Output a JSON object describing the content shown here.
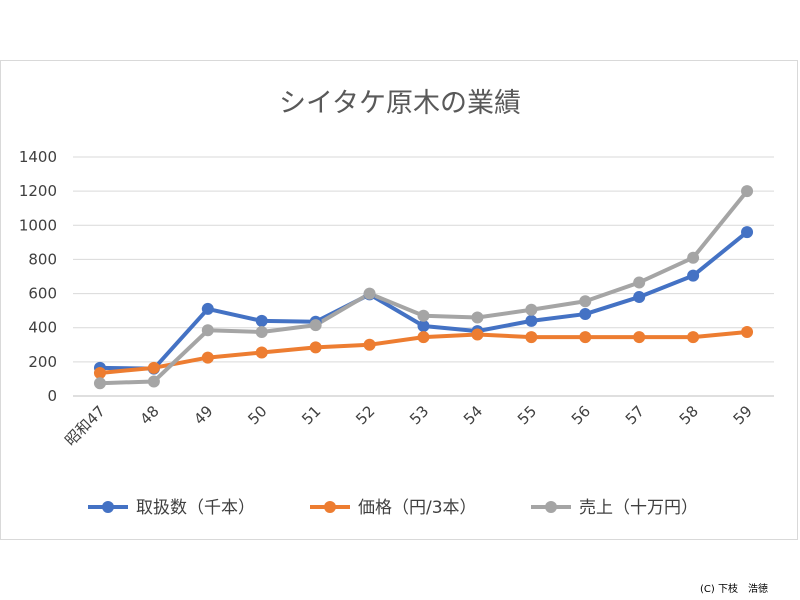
{
  "chart_data": {
    "type": "line",
    "title": "シイタケ原木の業績",
    "categories": [
      "昭和47",
      "48",
      "49",
      "50",
      "51",
      "52",
      "53",
      "54",
      "55",
      "56",
      "57",
      "58",
      "59"
    ],
    "ylim": [
      0,
      1400
    ],
    "yticks": [
      0,
      200,
      400,
      600,
      800,
      1000,
      1200,
      1400
    ],
    "grid": true,
    "legend_position": "bottom",
    "series": [
      {
        "name": "取扱数（千本）",
        "color": "#4472C4",
        "values": [
          165,
          160,
          510,
          440,
          435,
          595,
          410,
          380,
          440,
          480,
          580,
          705,
          960
        ]
      },
      {
        "name": "価格（円/3本）",
        "color": "#ED7D31",
        "values": [
          135,
          165,
          225,
          255,
          285,
          300,
          345,
          360,
          345,
          345,
          345,
          345,
          375
        ]
      },
      {
        "name": "売上（十万円）",
        "color": "#A5A5A5",
        "values": [
          75,
          85,
          385,
          375,
          415,
          600,
          470,
          460,
          505,
          555,
          665,
          810,
          1200
        ]
      }
    ]
  },
  "footer": {
    "copyright": "(C) 下枝　浩徳"
  }
}
